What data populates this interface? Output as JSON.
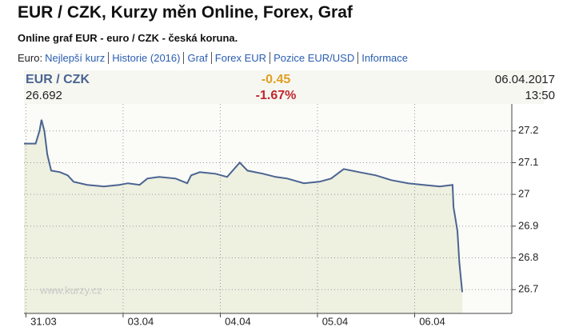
{
  "header": {
    "title": "EUR / CZK, Kurzy měn Online, Forex, Graf",
    "subtitle": "Online graf EUR - euro / CZK - česká koruna.",
    "nav_prefix": "Euro:",
    "links": [
      "Nejlepší kurz",
      "Historie (2016)",
      "Graf",
      "Forex EUR",
      "Pozice EUR/USD",
      "Informace"
    ]
  },
  "chart_data": {
    "type": "line",
    "title": "EUR / CZK",
    "last_value": "26.692",
    "change": "-0.45",
    "change_pct": "-1.67%",
    "date": "06.04.2017",
    "time": "13:50",
    "watermark": "www.kurzy.cz",
    "x": [
      -0.02,
      0.1,
      0.14,
      0.16,
      0.19,
      0.22,
      0.26,
      0.35,
      0.43,
      0.49,
      0.63,
      0.8,
      0.96,
      1.05,
      1.17,
      1.25,
      1.37,
      1.54,
      1.66,
      1.7,
      1.79,
      1.95,
      2.07,
      2.2,
      2.28,
      2.44,
      2.57,
      2.69,
      2.86,
      3.02,
      3.14,
      3.27,
      3.43,
      3.6,
      3.76,
      3.93,
      4.09,
      4.26,
      4.39,
      4.4,
      4.44,
      4.46,
      4.49
    ],
    "values": [
      27.16,
      27.16,
      27.2,
      27.235,
      27.2,
      27.125,
      27.075,
      27.07,
      27.06,
      27.04,
      27.03,
      27.025,
      27.03,
      27.035,
      27.03,
      27.05,
      27.055,
      27.05,
      27.035,
      27.06,
      27.07,
      27.065,
      27.055,
      27.1,
      27.075,
      27.065,
      27.055,
      27.05,
      27.035,
      27.04,
      27.05,
      27.08,
      27.07,
      27.06,
      27.045,
      27.035,
      27.03,
      27.025,
      27.03,
      26.96,
      26.885,
      26.785,
      26.692
    ],
    "color": "#4a6491",
    "fill": "#eef0e0",
    "xlim": [
      -0.02,
      5
    ],
    "xticks": [
      {
        "value": 0,
        "label": "31.03"
      },
      {
        "value": 1,
        "label": "03.04"
      },
      {
        "value": 2,
        "label": "04.04"
      },
      {
        "value": 3,
        "label": "05.04"
      },
      {
        "value": 4,
        "label": "06.04"
      }
    ],
    "ylim": [
      26.625,
      27.285
    ],
    "yticks": [
      26.7,
      26.8,
      26.9,
      27,
      27.1,
      27.2
    ],
    "grid": true
  }
}
